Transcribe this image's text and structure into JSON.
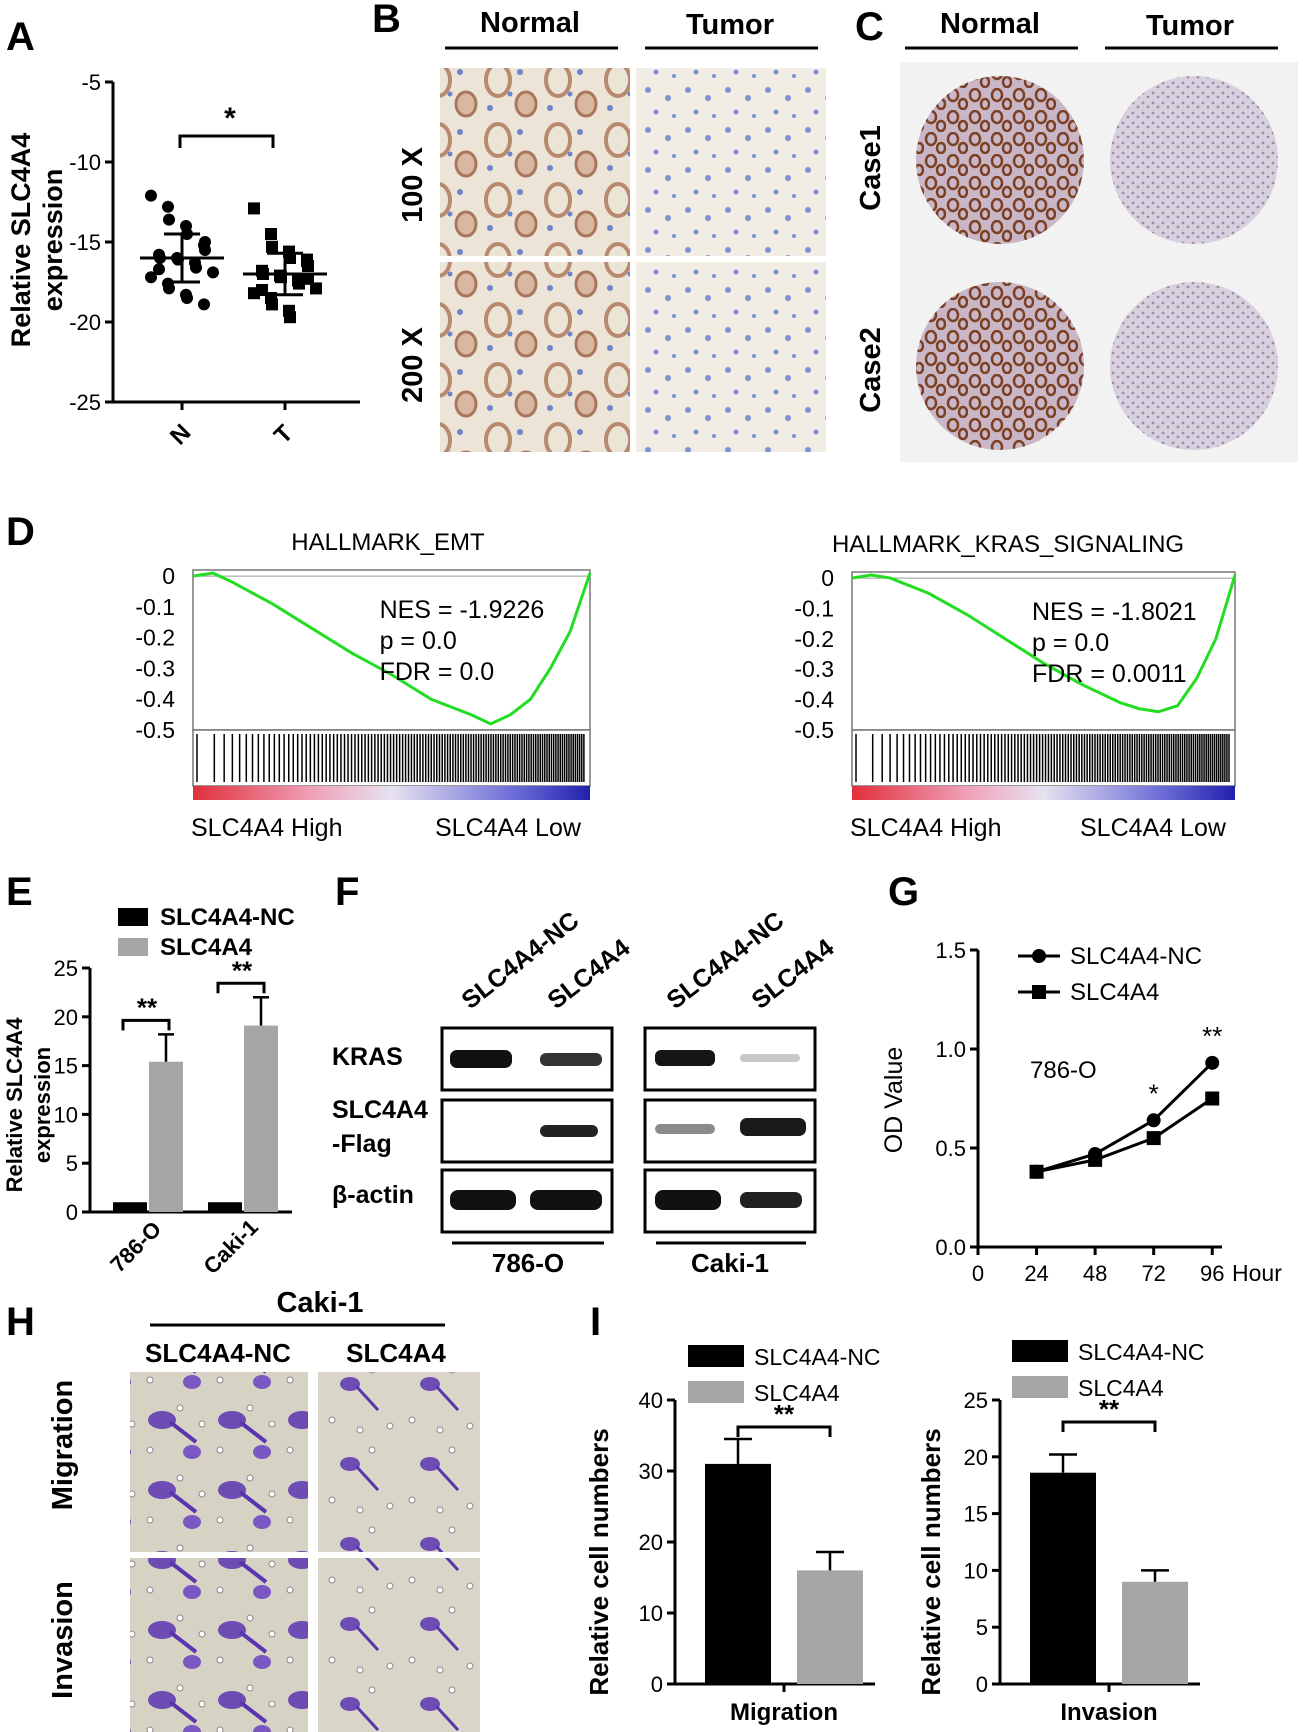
{
  "panels": {
    "A": "A",
    "B": "B",
    "C": "C",
    "D": "D",
    "E": "E",
    "F": "F",
    "G": "G",
    "H": "H",
    "I": "I"
  },
  "colors": {
    "black_bar": "#000000",
    "grey_bar": "#a6a6a6",
    "gsea_line": "#22dd22",
    "ihc_bg": "#e8e0d2",
    "brown_stain": "#8b4a2c",
    "purple_stain": "#6a3fb5"
  },
  "chart_data": [
    {
      "panel": "A",
      "type": "scatter",
      "ylabel": "Relative SLC4A4 expression",
      "ylabel_lines": [
        "Relative SLC4A4",
        "expression"
      ],
      "categories": [
        "N",
        "T"
      ],
      "ylim": [
        -25,
        -5
      ],
      "yticks": [
        "-5",
        "-10",
        "-15",
        "-20",
        "-25"
      ],
      "significance": "*",
      "series": [
        {
          "values": [
            -12.1,
            -12.8,
            -13.6,
            -14.0,
            -14.5,
            -15.2,
            -15.5,
            -15.8,
            -16.0,
            -16.0,
            -16.1,
            -16.3,
            -16.6,
            -16.9,
            -17.2,
            -17.6,
            -17.9,
            -18.3,
            -18.5,
            -18.9,
            -15.0,
            -16.7
          ],
          "mean": -16.0,
          "sd": 1.5
        },
        {
          "values": [
            -12.9,
            -14.5,
            -15.3,
            -15.6,
            -16.0,
            -16.2,
            -16.5,
            -16.8,
            -17.0,
            -17.1,
            -17.2,
            -17.4,
            -17.6,
            -17.9,
            -18.2,
            -18.5,
            -18.9,
            -19.3,
            -19.7,
            -16.1,
            -17.3,
            -18.0
          ],
          "mean": -17.0,
          "sd": 1.3
        }
      ]
    },
    {
      "panel": "D1",
      "type": "line",
      "title": "HALLMARK_EMT",
      "yticks": [
        "0",
        "-0.1",
        "-0.2",
        "-0.3",
        "-0.4",
        "-0.5"
      ],
      "ylim": [
        -0.5,
        0.02
      ],
      "stats": [
        "NES = -1.9226",
        "p = 0.0",
        "FDR = 0.0"
      ],
      "xlabels": [
        "SLC4A4 High",
        "SLC4A4 Low"
      ],
      "x": [
        0,
        0.05,
        0.1,
        0.2,
        0.3,
        0.4,
        0.5,
        0.6,
        0.7,
        0.75,
        0.8,
        0.85,
        0.9,
        0.95,
        1.0
      ],
      "y": [
        0.0,
        0.01,
        -0.02,
        -0.09,
        -0.17,
        -0.25,
        -0.32,
        -0.4,
        -0.45,
        -0.48,
        -0.45,
        -0.4,
        -0.3,
        -0.18,
        0.01
      ]
    },
    {
      "panel": "D2",
      "type": "line",
      "title": "HALLMARK_KRAS_SIGNALING",
      "yticks": [
        "0",
        "-0.1",
        "-0.2",
        "-0.3",
        "-0.4",
        "-0.5"
      ],
      "ylim": [
        -0.5,
        0.02
      ],
      "stats": [
        "NES = -1.8021",
        "p = 0.0",
        "FDR = 0.0011"
      ],
      "xlabels": [
        "SLC4A4 High",
        "SLC4A4 Low"
      ],
      "x": [
        0,
        0.05,
        0.1,
        0.2,
        0.3,
        0.4,
        0.5,
        0.6,
        0.7,
        0.75,
        0.8,
        0.85,
        0.9,
        0.95,
        1.0
      ],
      "y": [
        0.0,
        0.01,
        0.0,
        -0.05,
        -0.12,
        -0.2,
        -0.28,
        -0.35,
        -0.41,
        -0.43,
        -0.44,
        -0.42,
        -0.33,
        -0.2,
        0.01
      ]
    },
    {
      "panel": "E",
      "type": "bar",
      "ylabel_lines": [
        "Relative SLC4A4",
        "expression"
      ],
      "categories": [
        "786-O",
        "Caki-1"
      ],
      "ylim": [
        0,
        25
      ],
      "yticks": [
        "0",
        "5",
        "10",
        "15",
        "20",
        "25"
      ],
      "series": [
        {
          "name": "SLC4A4-NC",
          "values": [
            1.0,
            1.0
          ],
          "errors": [
            0,
            0
          ]
        },
        {
          "name": "SLC4A4",
          "values": [
            15.4,
            19.1
          ],
          "errors": [
            2.8,
            2.9
          ]
        }
      ],
      "significance": [
        "**",
        "**"
      ]
    },
    {
      "panel": "G",
      "type": "line",
      "ylabel": "OD Value",
      "xlabel": "Hour",
      "annotation": "786-O",
      "x": [
        24,
        48,
        72,
        96
      ],
      "xticks": [
        "0",
        "24",
        "48",
        "72",
        "96"
      ],
      "yticks": [
        "0.0",
        "0.5",
        "1.0",
        "1.5"
      ],
      "ylim": [
        0,
        1.5
      ],
      "xlim": [
        0,
        100
      ],
      "series": [
        {
          "name": "SLC4A4-NC",
          "values": [
            0.38,
            0.47,
            0.64,
            0.93
          ]
        },
        {
          "name": "SLC4A4",
          "values": [
            0.38,
            0.44,
            0.55,
            0.75
          ]
        }
      ],
      "significance": [
        {
          "x": 72,
          "label": "*"
        },
        {
          "x": 96,
          "label": "**"
        }
      ]
    },
    {
      "panel": "I1",
      "type": "bar",
      "ylabel": "Relative cell numbers",
      "categories": [
        "Migration"
      ],
      "ylim": [
        0,
        40
      ],
      "yticks": [
        "0",
        "10",
        "20",
        "30",
        "40"
      ],
      "series": [
        {
          "name": "SLC4A4-NC",
          "values": [
            31
          ],
          "errors": [
            3.5
          ]
        },
        {
          "name": "SLC4A4",
          "values": [
            16
          ],
          "errors": [
            2.6
          ]
        }
      ],
      "significance": "**"
    },
    {
      "panel": "I2",
      "type": "bar",
      "ylabel": "Relative cell numbers",
      "categories": [
        "Invasion"
      ],
      "ylim": [
        0,
        25
      ],
      "yticks": [
        "0",
        "5",
        "10",
        "15",
        "20",
        "25"
      ],
      "series": [
        {
          "name": "SLC4A4-NC",
          "values": [
            18.6
          ],
          "errors": [
            1.6
          ]
        },
        {
          "name": "SLC4A4",
          "values": [
            9.0
          ],
          "errors": [
            1.0
          ]
        }
      ],
      "significance": "**"
    }
  ],
  "panelB": {
    "headers": [
      "Normal",
      "Tumor"
    ],
    "rows": [
      "100 X",
      "200 X"
    ]
  },
  "panelC": {
    "headers": [
      "Normal",
      "Tumor"
    ],
    "rows": [
      "Case1",
      "Case2"
    ]
  },
  "panelF": {
    "lanes": [
      "SLC4A4-NC",
      "SLC4A4",
      "SLC4A4-NC",
      "SLC4A4"
    ],
    "rows": [
      "KRAS",
      "SLC4A4",
      "-Flag",
      "β-actin"
    ],
    "cells": [
      "786-O",
      "Caki-1"
    ]
  },
  "panelH": {
    "title": "Caki-1",
    "columns": [
      "SLC4A4-NC",
      "SLC4A4"
    ],
    "rows": [
      "Migration",
      "Invasion"
    ]
  }
}
